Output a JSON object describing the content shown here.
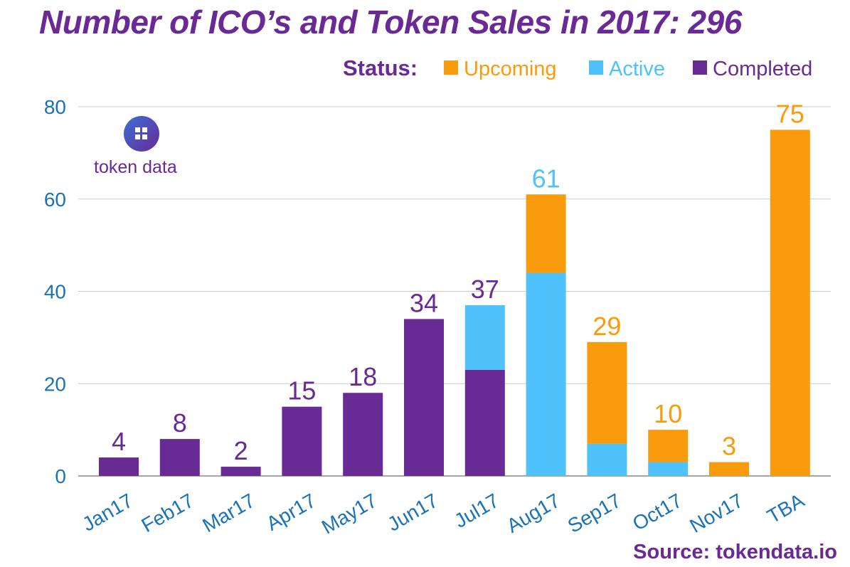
{
  "title": "Number of ICO’s and Token Sales in 2017: 296",
  "legend": {
    "label": "Status:",
    "items": [
      {
        "name": "Upcoming",
        "color": "#f89c0e"
      },
      {
        "name": "Active",
        "color": "#4fc1fb"
      },
      {
        "name": "Completed",
        "color": "#682a94"
      }
    ]
  },
  "logo": {
    "text": "token data",
    "icon": "grid-icon"
  },
  "source": "Source: tokendata.io",
  "colors": {
    "completed": "#682a94",
    "active": "#4fc1fb",
    "upcoming": "#f89c0e",
    "axis_text": "#1a73b8",
    "grid": "#cccccc"
  },
  "chart_data": {
    "type": "bar",
    "stacked": true,
    "categories": [
      "Jan17",
      "Feb17",
      "Mar17",
      "Apr17",
      "May17",
      "Jun17",
      "Jul17",
      "Aug17",
      "Sep17",
      "Oct17",
      "Nov17",
      "TBA"
    ],
    "series": [
      {
        "name": "Completed",
        "values": [
          4,
          8,
          2,
          15,
          18,
          34,
          23,
          0,
          0,
          0,
          0,
          0
        ]
      },
      {
        "name": "Active",
        "values": [
          0,
          0,
          0,
          0,
          0,
          0,
          14,
          44,
          7,
          3,
          0,
          0
        ]
      },
      {
        "name": "Upcoming",
        "values": [
          0,
          0,
          0,
          0,
          0,
          0,
          0,
          17,
          22,
          7,
          3,
          75
        ]
      }
    ],
    "totals": [
      4,
      8,
      2,
      15,
      18,
      34,
      37,
      61,
      29,
      10,
      3,
      75
    ],
    "total_label_colors": [
      "#682a94",
      "#682a94",
      "#682a94",
      "#682a94",
      "#682a94",
      "#682a94",
      "#682a94",
      "#4fc1fb",
      "#f89c0e",
      "#f89c0e",
      "#f89c0e",
      "#f89c0e"
    ],
    "ylim": [
      0,
      80
    ],
    "yticks": [
      0,
      20,
      40,
      60,
      80
    ],
    "grid": true,
    "legend_position": "top-right"
  }
}
